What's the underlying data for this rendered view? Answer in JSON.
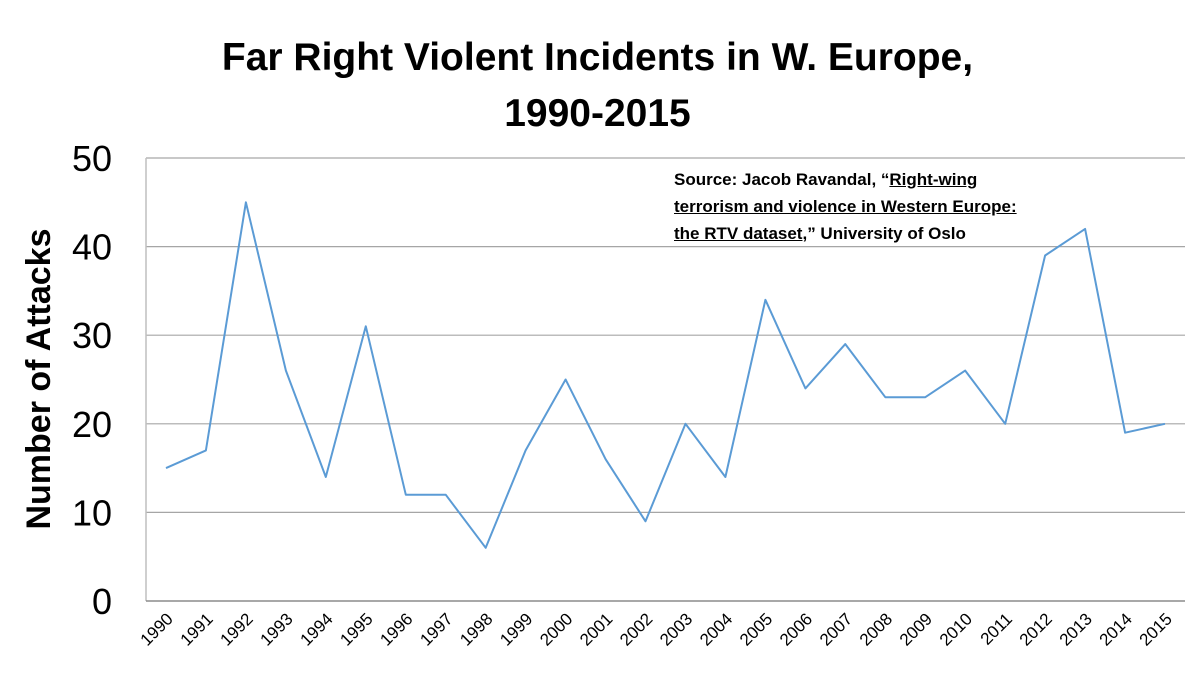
{
  "chart_data": {
    "type": "line",
    "title_line1": "Far Right Violent Incidents in W. Europe,",
    "title_line2": "1990-2015",
    "ylabel": "Number of Attacks",
    "xlabel": "",
    "ylim": [
      0,
      50
    ],
    "yticks": [
      "0",
      "10",
      "20",
      "30",
      "40",
      "50"
    ],
    "grid": true,
    "categories": [
      "1990",
      "1991",
      "1992",
      "1993",
      "1994",
      "1995",
      "1996",
      "1997",
      "1998",
      "1999",
      "2000",
      "2001",
      "2002",
      "2003",
      "2004",
      "2005",
      "2006",
      "2007",
      "2008",
      "2009",
      "2010",
      "2011",
      "2012",
      "2013",
      "2014",
      "2015"
    ],
    "series": [
      {
        "name": "Attacks",
        "color": "#5b9bd5",
        "values": [
          15,
          17,
          45,
          26,
          14,
          31,
          12,
          12,
          6,
          17,
          25,
          16,
          9,
          20,
          14,
          34,
          24,
          29,
          23,
          23,
          26,
          20,
          39,
          42,
          19,
          20
        ]
      }
    ],
    "source": {
      "prefix": "Source: Jacob Ravandal, “",
      "link1": "Right-wing",
      "link2": "terrorism and violence in Western Europe:",
      "link3": "the RTV dataset",
      "suffix": ",” University of Oslo"
    }
  }
}
